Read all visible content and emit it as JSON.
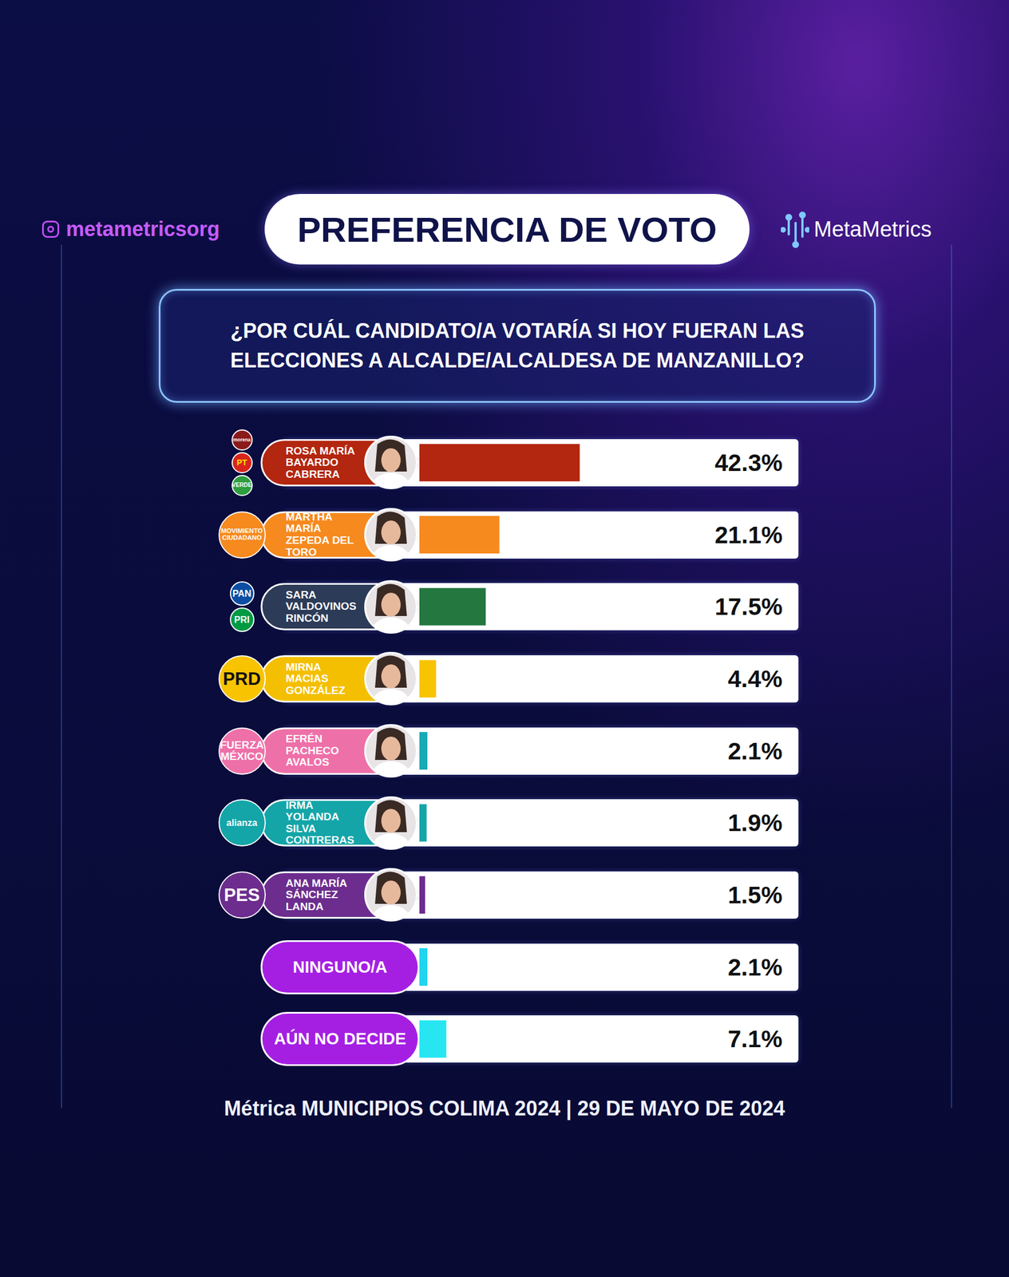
{
  "chart_data": {
    "type": "bar",
    "orientation": "horizontal",
    "title": "PREFERENCIA DE VOTO",
    "subtitle": "¿POR CUÁL CANDIDATO/A VOTARÍA SI HOY FUERAN LAS ELECCIONES A ALCALDE/ALCALDESA DE MANZANILLO?",
    "source": "Métrica MUNICIPIOS COLIMA 2024 | 29 DE MAYO DE 2024",
    "handle": "metametricsorg",
    "brand": "MetaMetrics",
    "categories": [
      "ROSA MARÍA BAYARDO CABRERA",
      "MARTHA MARÍA ZEPEDA DEL TORO",
      "SARA VALDOVINOS RINCÓN",
      "MIRNA MACIAS GONZÁLEZ",
      "EFRÉN PACHECO AVALOS",
      "IRMA YOLANDA SILVA CONTRERAS",
      "ANA MARÍA SÁNCHEZ LANDA",
      "NINGUNO/A",
      "AÚN NO DECIDE"
    ],
    "parties": [
      [
        "morena",
        "PT",
        "VERDE"
      ],
      [
        "MOVIMIENTO CIUDADANO"
      ],
      [
        "PAN",
        "PRI"
      ],
      [
        "PRD"
      ],
      [
        "FUERZA MÉXICO"
      ],
      [
        "alianza"
      ],
      [
        "PES"
      ],
      [],
      []
    ],
    "values": [
      42.3,
      21.1,
      17.5,
      4.4,
      2.1,
      1.9,
      1.5,
      2.1,
      7.1
    ],
    "value_labels": [
      "42.3%",
      "21.1%",
      "17.5%",
      "4.4%",
      "2.1%",
      "1.9%",
      "1.5%",
      "2.1%",
      "7.1%"
    ],
    "colors": [
      "#b3260f",
      "#f68a1f",
      "#23773f",
      "#f8c300",
      "#18a9b5",
      "#14a5a8",
      "#6c2d8e",
      "#22d3ee",
      "#27e6f2"
    ],
    "xlim": [
      0,
      100
    ],
    "data_labels": true,
    "tick_labels": false,
    "grid": false
  }
}
